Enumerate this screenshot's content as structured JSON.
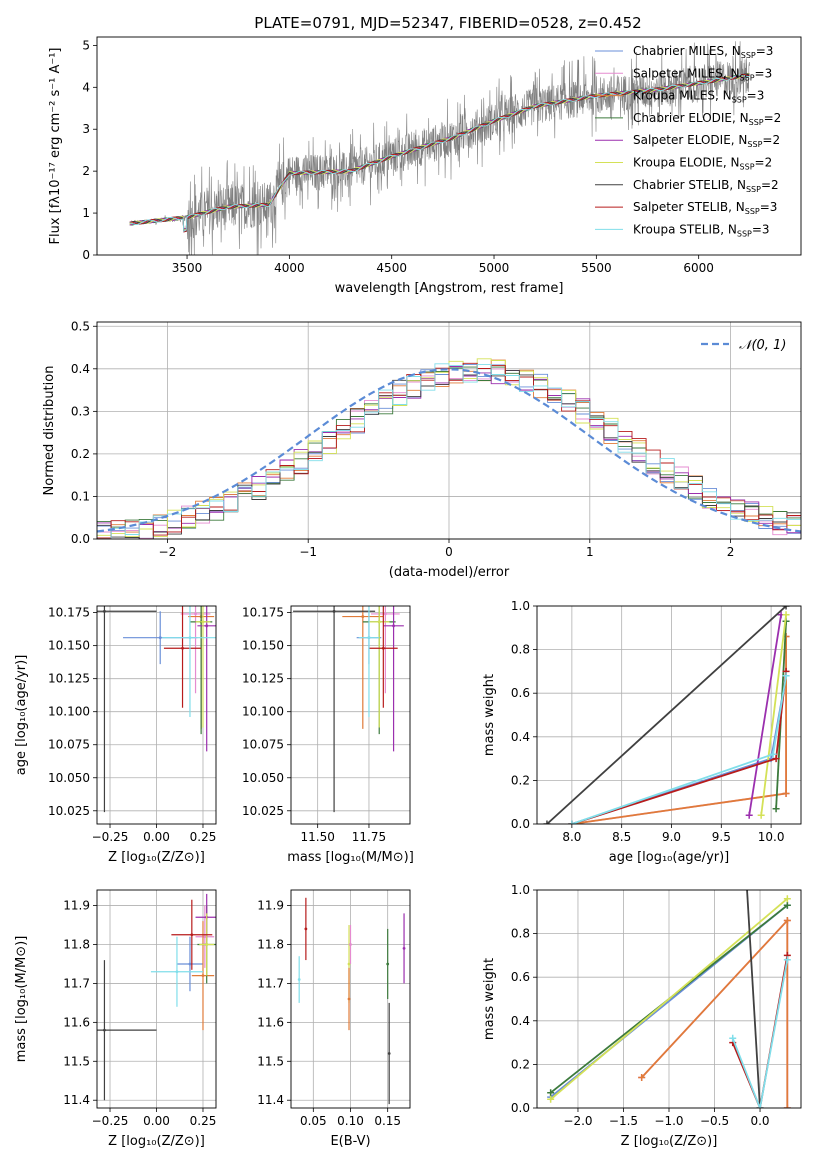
{
  "title": "PLATE=0791, MJD=52347, FIBERID=0528, z=0.452",
  "series": [
    {
      "name": "Chabrier MILES, N<sub>SSP</sub>=3",
      "label": "Chabrier MILES, N",
      "sub": "SSP",
      "suffix": "=3",
      "color": "#6a8fd8"
    },
    {
      "name": "Salpeter MILES, N<sub>SSP</sub>=3",
      "label": "Salpeter MILES, N",
      "sub": "SSP",
      "suffix": "=3",
      "color": "#e58bd0"
    },
    {
      "name": "Kroupa MILES, N<sub>SSP</sub>=3",
      "label": "Kroupa MILES, N",
      "sub": "SSP",
      "suffix": "=3",
      "color": "#e07b39"
    },
    {
      "name": "Chabrier ELODIE, N<sub>SSP</sub>=2",
      "label": "Chabrier ELODIE, N",
      "sub": "SSP",
      "suffix": "=2",
      "color": "#3c7a3c"
    },
    {
      "name": "Salpeter ELODIE, N<sub>SSP</sub>=2",
      "label": "Salpeter ELODIE, N",
      "sub": "SSP",
      "suffix": "=2",
      "color": "#9b2fae"
    },
    {
      "name": "Kroupa ELODIE, N<sub>SSP</sub>=2",
      "label": "Kroupa ELODIE, N",
      "sub": "SSP",
      "suffix": "=2",
      "color": "#d4e157"
    },
    {
      "name": "Chabrier STELIB, N<sub>SSP</sub>=2",
      "label": "Chabrier STELIB, N",
      "sub": "SSP",
      "suffix": "=2",
      "color": "#404040"
    },
    {
      "name": "Salpeter STELIB, N<sub>SSP</sub>=3",
      "label": "Salpeter STELIB, N",
      "sub": "SSP",
      "suffix": "=3",
      "color": "#b71c1c"
    },
    {
      "name": "Kroupa STELIB, N<sub>SSP</sub>=3",
      "label": "Kroupa STELIB, N",
      "sub": "SSP",
      "suffix": "=3",
      "color": "#80deea"
    }
  ],
  "chart_data": [
    {
      "id": "spectrum",
      "type": "line",
      "xlabel": "wavelength [Angstrom, rest frame]",
      "ylabel": "Flux [fλ10⁻¹⁷ erg cm⁻² s⁻¹ A⁻¹]",
      "xlim": [
        3060,
        6500
      ],
      "ylim": [
        0,
        5.2
      ],
      "xticks": [
        3500,
        4000,
        4500,
        5000,
        5500,
        6000
      ],
      "yticks": [
        0,
        1,
        2,
        3,
        4,
        5
      ],
      "data_range": [
        3220,
        6250
      ],
      "continuum": [
        [
          3220,
          0.75
        ],
        [
          3500,
          0.9
        ],
        [
          3700,
          1.15
        ],
        [
          3900,
          1.2
        ],
        [
          4000,
          1.95
        ],
        [
          4300,
          2.0
        ],
        [
          4500,
          2.35
        ],
        [
          4800,
          2.8
        ],
        [
          5000,
          3.2
        ],
        [
          5200,
          3.55
        ],
        [
          5500,
          3.8
        ],
        [
          5800,
          3.95
        ],
        [
          6000,
          4.1
        ],
        [
          6250,
          4.3
        ]
      ],
      "legend": "upper right"
    },
    {
      "id": "residuals",
      "type": "step",
      "xlabel": "(data-model)/error",
      "ylabel": "Normed distribution",
      "xlim": [
        -2.5,
        2.5
      ],
      "ylim": [
        0,
        0.51
      ],
      "xticks": [
        -2,
        -1,
        0,
        1,
        2
      ],
      "yticks": [
        0,
        0.1,
        0.2,
        0.3,
        0.4,
        0.5
      ],
      "bin_width": 0.1,
      "reference_curve": {
        "label": "𝒩(0, 1)",
        "mean": 0,
        "sigma": 1,
        "shift": 0.0,
        "color": "#5b8bd6"
      },
      "legend": "upper right"
    },
    {
      "id": "age-vs-Z",
      "type": "errorbar",
      "xlabel": "Z [log₁₀(Z/Z⊙)]",
      "ylabel": "age  [log₁₀(age/yr)]",
      "xlim": [
        -0.32,
        0.32
      ],
      "ylim": [
        10.015,
        10.18
      ],
      "xticks": [
        -0.25,
        0.0,
        0.25
      ],
      "yticks": [
        10.025,
        10.05,
        10.075,
        10.1,
        10.125,
        10.15,
        10.175
      ],
      "points": [
        {
          "x": 0.02,
          "y": 10.156,
          "xerr": 0.2,
          "yerr": 0.02,
          "s": 0
        },
        {
          "x": 0.21,
          "y": 10.174,
          "xerr": 0.08,
          "yerr": 0.06,
          "s": 1
        },
        {
          "x": 0.24,
          "y": 10.172,
          "xerr": 0.07,
          "yerr": 0.085,
          "s": 2
        },
        {
          "x": 0.24,
          "y": 10.168,
          "xerr": 0.06,
          "yerr": 0.085,
          "s": 3
        },
        {
          "x": 0.27,
          "y": 10.165,
          "xerr": 0.05,
          "yerr": 0.095,
          "s": 4
        },
        {
          "x": 0.25,
          "y": 10.168,
          "xerr": 0.04,
          "yerr": 0.08,
          "s": 5
        },
        {
          "x": -0.28,
          "y": 10.176,
          "xerr": 0.28,
          "yerr": 0.152,
          "s": 6
        },
        {
          "x": 0.14,
          "y": 10.148,
          "xerr": 0.1,
          "yerr": 0.045,
          "s": 7
        },
        {
          "x": 0.18,
          "y": 10.156,
          "xerr": 0.15,
          "yerr": 0.06,
          "s": 8
        }
      ]
    },
    {
      "id": "age-vs-mass",
      "type": "errorbar",
      "xlabel": "mass [log₁₀(M/M⊙)]",
      "ylabel": "",
      "xlim": [
        11.37,
        11.95
      ],
      "ylim": [
        10.015,
        10.18
      ],
      "xticks": [
        11.5,
        11.75
      ],
      "yticks": [
        10.025,
        10.05,
        10.075,
        10.1,
        10.125,
        10.15,
        10.175
      ],
      "points": [
        {
          "x": 11.75,
          "y": 10.156,
          "xerr": 0.06,
          "yerr": 0.02,
          "s": 0
        },
        {
          "x": 11.83,
          "y": 10.174,
          "xerr": 0.07,
          "yerr": 0.06,
          "s": 1
        },
        {
          "x": 11.72,
          "y": 10.172,
          "xerr": 0.1,
          "yerr": 0.085,
          "s": 2
        },
        {
          "x": 11.8,
          "y": 10.168,
          "xerr": 0.08,
          "yerr": 0.085,
          "s": 3
        },
        {
          "x": 11.87,
          "y": 10.165,
          "xerr": 0.05,
          "yerr": 0.095,
          "s": 4
        },
        {
          "x": 11.8,
          "y": 10.168,
          "xerr": 0.05,
          "yerr": 0.08,
          "s": 5
        },
        {
          "x": 11.58,
          "y": 10.176,
          "xerr": 0.2,
          "yerr": 0.152,
          "s": 6
        },
        {
          "x": 11.82,
          "y": 10.148,
          "xerr": 0.07,
          "yerr": 0.045,
          "s": 7
        },
        {
          "x": 11.75,
          "y": 10.156,
          "xerr": 0.05,
          "yerr": 0.06,
          "s": 8
        }
      ]
    },
    {
      "id": "weight-vs-age",
      "type": "line",
      "xlabel": "age  [log₁₀(age/yr)]",
      "ylabel": "mass weight",
      "xlim": [
        7.65,
        10.3
      ],
      "ylim": [
        0,
        1.0
      ],
      "xticks": [
        8.0,
        8.5,
        9.0,
        9.5,
        10.0
      ],
      "yticks": [
        0.0,
        0.2,
        0.4,
        0.6,
        0.8,
        1.0
      ],
      "lines": [
        {
          "s": 0,
          "pts": [
            [
              8.0,
              0.0
            ],
            [
              10.0,
              0.3
            ],
            [
              10.15,
              0.68
            ]
          ]
        },
        {
          "s": 1,
          "pts": [
            [
              8.0,
              0.0
            ],
            [
              10.15,
              0.14
            ],
            [
              10.15,
              0.86
            ]
          ]
        },
        {
          "s": 2,
          "pts": [
            [
              8.0,
              0.0
            ],
            [
              10.15,
              0.14
            ],
            [
              10.15,
              0.86
            ]
          ]
        },
        {
          "s": 3,
          "pts": [
            [
              10.05,
              0.07
            ],
            [
              10.15,
              0.93
            ]
          ]
        },
        {
          "s": 4,
          "pts": [
            [
              9.78,
              0.04
            ],
            [
              10.1,
              0.96
            ]
          ]
        },
        {
          "s": 5,
          "pts": [
            [
              9.9,
              0.04
            ],
            [
              10.15,
              0.96
            ]
          ]
        },
        {
          "s": 6,
          "pts": [
            [
              7.75,
              0.0
            ],
            [
              10.15,
              1.0
            ]
          ]
        },
        {
          "s": 7,
          "pts": [
            [
              8.0,
              0.0
            ],
            [
              10.05,
              0.3
            ],
            [
              10.15,
              0.7
            ]
          ]
        },
        {
          "s": 8,
          "pts": [
            [
              8.0,
              0.0
            ],
            [
              10.02,
              0.32
            ],
            [
              10.15,
              0.68
            ]
          ]
        }
      ]
    },
    {
      "id": "mass-vs-Z",
      "type": "errorbar",
      "xlabel": "Z [log₁₀(Z/Z⊙)]",
      "ylabel": "mass [log₁₀(M/M⊙)]",
      "xlim": [
        -0.32,
        0.32
      ],
      "ylim": [
        11.38,
        11.94
      ],
      "xticks": [
        -0.25,
        0.0,
        0.25
      ],
      "yticks": [
        11.4,
        11.5,
        11.6,
        11.7,
        11.8,
        11.9
      ],
      "points": [
        {
          "x": 0.18,
          "y": 11.75,
          "xerr": 0.07,
          "yerr": 0.07,
          "s": 0
        },
        {
          "x": 0.26,
          "y": 11.82,
          "xerr": 0.05,
          "yerr": 0.08,
          "s": 1
        },
        {
          "x": 0.25,
          "y": 11.72,
          "xerr": 0.06,
          "yerr": 0.14,
          "s": 2
        },
        {
          "x": 0.27,
          "y": 11.8,
          "xerr": 0.05,
          "yerr": 0.1,
          "s": 3
        },
        {
          "x": 0.27,
          "y": 11.87,
          "xerr": 0.06,
          "yerr": 0.06,
          "s": 4
        },
        {
          "x": 0.27,
          "y": 11.8,
          "xerr": 0.04,
          "yerr": 0.08,
          "s": 5
        },
        {
          "x": -0.28,
          "y": 11.58,
          "xerr": 0.28,
          "yerr": 0.18,
          "s": 6
        },
        {
          "x": 0.19,
          "y": 11.825,
          "xerr": 0.11,
          "yerr": 0.09,
          "s": 7
        },
        {
          "x": 0.11,
          "y": 11.73,
          "xerr": 0.14,
          "yerr": 0.09,
          "s": 8
        }
      ]
    },
    {
      "id": "mass-vs-ebv",
      "type": "errorbar",
      "xlabel": "E(B-V)",
      "ylabel": "",
      "xlim": [
        0.02,
        0.18
      ],
      "ylim": [
        11.38,
        11.94
      ],
      "xticks": [
        0.05,
        0.1,
        0.15
      ],
      "yticks": [
        11.4,
        11.5,
        11.6,
        11.7,
        11.8,
        11.9
      ],
      "points": [
        {
          "x": 0.031,
          "y": 11.71,
          "xerr": 0.0,
          "yerr": 0.06,
          "s": 8
        },
        {
          "x": 0.04,
          "y": 11.84,
          "xerr": 0.0,
          "yerr": 0.08,
          "s": 7
        },
        {
          "x": 0.098,
          "y": 11.75,
          "xerr": 0.0,
          "yerr": 0.1,
          "s": 5
        },
        {
          "x": 0.098,
          "y": 11.66,
          "xerr": 0.0,
          "yerr": 0.08,
          "s": 2
        },
        {
          "x": 0.1,
          "y": 11.8,
          "xerr": 0.0,
          "yerr": 0.05,
          "s": 1
        },
        {
          "x": 0.15,
          "y": 11.75,
          "xerr": 0.0,
          "yerr": 0.09,
          "s": 3
        },
        {
          "x": 0.152,
          "y": 11.52,
          "xerr": 0.0,
          "yerr": 0.13,
          "s": 6
        },
        {
          "x": 0.172,
          "y": 11.79,
          "xerr": 0.0,
          "yerr": 0.09,
          "s": 4
        }
      ]
    },
    {
      "id": "weight-vs-Z",
      "type": "line",
      "xlabel": "Z [log₁₀(Z/Z⊙)]",
      "ylabel": "mass weight",
      "xlim": [
        -2.45,
        0.45
      ],
      "ylim": [
        0,
        1.0
      ],
      "xticks": [
        -2.0,
        -1.5,
        -1.0,
        -0.5,
        0.0
      ],
      "yticks": [
        0.0,
        0.2,
        0.4,
        0.6,
        0.8,
        1.0
      ],
      "lines": [
        {
          "s": 0,
          "pts": [
            [
              -2.3,
              0.05
            ],
            [
              0.3,
              0.93
            ]
          ]
        },
        {
          "s": 1,
          "pts": [
            [
              -1.3,
              0.14
            ],
            [
              0.3,
              0.86
            ],
            [
              0.3,
              0.0
            ]
          ]
        },
        {
          "s": 2,
          "pts": [
            [
              -1.3,
              0.14
            ],
            [
              0.3,
              0.86
            ],
            [
              0.3,
              0.0
            ]
          ]
        },
        {
          "s": 3,
          "pts": [
            [
              -2.3,
              0.07
            ],
            [
              0.3,
              0.93
            ]
          ]
        },
        {
          "s": 5,
          "pts": [
            [
              -2.3,
              0.04
            ],
            [
              0.3,
              0.96
            ]
          ]
        },
        {
          "s": 6,
          "pts": [
            [
              -0.15,
              1.05
            ],
            [
              0.0,
              0.0
            ]
          ]
        },
        {
          "s": 7,
          "pts": [
            [
              -0.3,
              0.3
            ],
            [
              0.0,
              0.0
            ],
            [
              0.3,
              0.7
            ]
          ]
        },
        {
          "s": 8,
          "pts": [
            [
              -0.3,
              0.32
            ],
            [
              0.0,
              0.0
            ],
            [
              0.3,
              0.68
            ]
          ]
        }
      ]
    }
  ]
}
